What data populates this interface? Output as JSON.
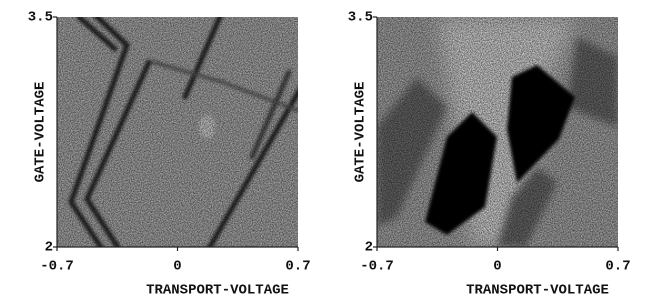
{
  "chart_data": [
    {
      "type": "heatmap",
      "xlabel": "TRANSPORT-VOLTAGE",
      "ylabel": "GATE-VOLTAGE",
      "xlim": [
        -0.7,
        0.7
      ],
      "ylim": [
        2,
        3.5
      ],
      "xticks": [
        -0.7,
        0,
        0.7
      ],
      "yticks": [
        2,
        3.5
      ]
    },
    {
      "type": "heatmap",
      "xlabel": "TRANSPORT-VOLTAGE",
      "ylabel": "GATE-VOLTAGE",
      "xlim": [
        -0.7,
        0.7
      ],
      "ylim": [
        2,
        3.5
      ],
      "xticks": [
        -0.7,
        0,
        0.7
      ],
      "yticks": [
        2,
        3.5
      ]
    }
  ]
}
